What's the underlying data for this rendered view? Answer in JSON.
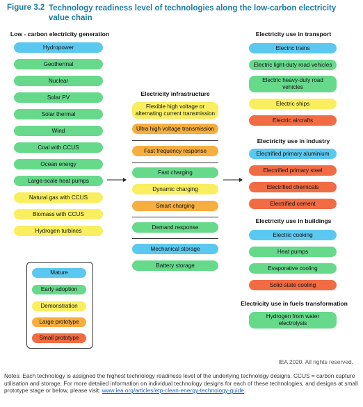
{
  "figure": {
    "label": "Figure 3.2",
    "title": "Technology readiness level of technologies along the low-carbon electricity value chain"
  },
  "columns": {
    "generation": {
      "heading": "Low - carbon electricity generation",
      "items": [
        {
          "label": "Hydropower",
          "level": "mature"
        },
        {
          "label": "Geothermal",
          "level": "early"
        },
        {
          "label": "Nuclear",
          "level": "early"
        },
        {
          "label": "Solar PV",
          "level": "early"
        },
        {
          "label": "Solar thermal",
          "level": "early"
        },
        {
          "label": "Wind",
          "level": "early"
        },
        {
          "label": "Coal with CCUS",
          "level": "early"
        },
        {
          "label": "Ocean energy",
          "level": "early"
        },
        {
          "label": "Large-scale heat pumps",
          "level": "early"
        },
        {
          "label": "Natural gas with CCUS",
          "level": "demo"
        },
        {
          "label": "Biomass with CCUS",
          "level": "demo"
        },
        {
          "label": "Hydrogen turbines",
          "level": "demo"
        }
      ]
    },
    "infrastructure": {
      "heading": "Electricity infrastructure",
      "items": [
        {
          "label": "Flexible high voltage or alternating current transmission",
          "level": "demo"
        },
        {
          "label": "Ultra high voltage transmission",
          "level": "large"
        },
        {
          "label": "Fast frequency response",
          "level": "large"
        },
        {
          "label": "Fast charging",
          "level": "early"
        },
        {
          "label": "Dynamic charging",
          "level": "demo"
        },
        {
          "label": "Smart charging",
          "level": "large"
        },
        {
          "label": "Demand response",
          "level": "early"
        },
        {
          "label": "Mechanical storage",
          "level": "mature"
        },
        {
          "label": "Battery storage",
          "level": "early"
        }
      ]
    },
    "transport": {
      "heading": "Electricity use in transport",
      "items": [
        {
          "label": "Electric trains",
          "level": "mature"
        },
        {
          "label": "Electric light-duty road vehicles",
          "level": "early"
        },
        {
          "label": "Electric heavy-duty road vehicles",
          "level": "early"
        },
        {
          "label": "Electric ships",
          "level": "demo"
        },
        {
          "label": "Electric aircrafts",
          "level": "small"
        }
      ]
    },
    "industry": {
      "heading": "Electricity use in industry",
      "items": [
        {
          "label": "Electrified primary aluminium",
          "level": "mature"
        },
        {
          "label": "Electrified primary steel",
          "level": "small"
        },
        {
          "label": "Electrified chemicals",
          "level": "small"
        },
        {
          "label": "Electrified cement",
          "level": "small"
        }
      ]
    },
    "buildings": {
      "heading": "Electricity use in buildings",
      "items": [
        {
          "label": "Electric cooking",
          "level": "mature"
        },
        {
          "label": "Heat pumps",
          "level": "early"
        },
        {
          "label": "Evaporative cooling",
          "level": "early"
        },
        {
          "label": "Solid state cooling",
          "level": "small"
        }
      ]
    },
    "fuels": {
      "heading": "Electricity use in fuels transformation",
      "items": [
        {
          "label": "Hydrogen from water electrolysis",
          "level": "early"
        }
      ]
    }
  },
  "legend": {
    "items": [
      {
        "label": "Mature",
        "level": "mature"
      },
      {
        "label": "Early adoption",
        "level": "early"
      },
      {
        "label": "Demonstration",
        "level": "demo"
      },
      {
        "label": "Large prototype",
        "level": "large"
      },
      {
        "label": "Small prototype",
        "level": "small"
      }
    ]
  },
  "colors": {
    "mature": "#5bc8ef",
    "early": "#66d98b",
    "demo": "#f8ee5f",
    "large": "#f6ae3f",
    "small": "#f16b43",
    "title": "#1c7ca3"
  },
  "credit": "IEA 2020. All rights reserved.",
  "notes": {
    "text_1": "Notes: Each technology is assigned the highest technology readiness level of the underlying technology designs. CCUS = carbon capture utilisation and storage. For more detailed information on individual technology designs for each of these technologies, and designs at small prototype stage or below, please visit: ",
    "link": "www.iea.org/articles/etp-clean-energy-technology-guide",
    "text_2": "."
  }
}
